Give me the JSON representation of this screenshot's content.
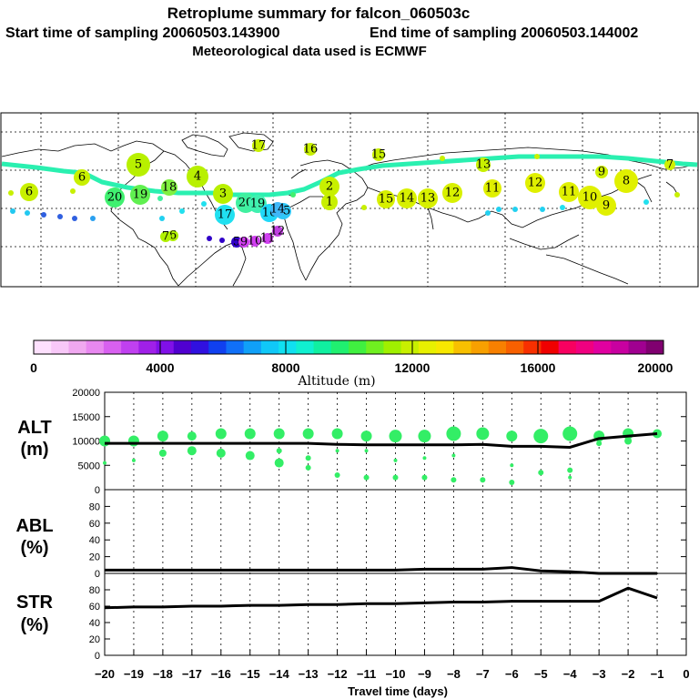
{
  "header": {
    "title": "Retroplume summary for falcon_060503c",
    "start_label": "Start time of sampling 20060503.143900",
    "end_label": "End time of sampling 20060503.144002",
    "met_label": "Meteorological data used is ECMWF"
  },
  "colors": {
    "track": "#2af0b0",
    "plume": "#33ee66",
    "black": "#000000",
    "cyan": "#22e0ee",
    "yellowgreen": "#c8f000",
    "purple": "#5a00c8",
    "magenta": "#d040f0"
  },
  "map": {
    "plume_labels": [
      {
        "t": "17",
        "c": "#c8f000"
      },
      {
        "t": "16",
        "c": "#c8f000"
      },
      {
        "t": "15",
        "c": "#c8f000"
      },
      {
        "t": "5",
        "c": "#b8f000"
      },
      {
        "t": "4",
        "c": "#b8f000"
      },
      {
        "t": "3",
        "c": "#b8f000"
      },
      {
        "t": "2",
        "c": "#c8f000"
      },
      {
        "t": "1",
        "c": "#c8f000"
      },
      {
        "t": "6",
        "c": "#c8f000"
      },
      {
        "t": "20",
        "c": "#40f070"
      },
      {
        "t": "19",
        "c": "#60f050"
      },
      {
        "t": "18",
        "c": "#80f040"
      },
      {
        "t": "20",
        "c": "#40f0a0"
      },
      {
        "t": "19",
        "c": "#40f0b0"
      },
      {
        "t": "17",
        "c": "#20e0f0"
      },
      {
        "t": "16",
        "c": "#20d8f8"
      },
      {
        "t": "15",
        "c": "#30c8f8"
      },
      {
        "t": "14",
        "c": "#40b8f8"
      },
      {
        "t": "15",
        "c": "#d8f000"
      },
      {
        "t": "14",
        "c": "#d8f000"
      },
      {
        "t": "13",
        "c": "#d8f000"
      },
      {
        "t": "12",
        "c": "#d8f000"
      },
      {
        "t": "11",
        "c": "#e0f000"
      },
      {
        "t": "12",
        "c": "#e0f000"
      },
      {
        "t": "11",
        "c": "#e0f000"
      },
      {
        "t": "10",
        "c": "#e0f000"
      },
      {
        "t": "9",
        "c": "#e0f000"
      },
      {
        "t": "8",
        "c": "#e0f000"
      },
      {
        "t": "13",
        "c": "#c8f000"
      },
      {
        "t": "9",
        "c": "#d0f000"
      },
      {
        "t": "7",
        "c": "#d0f000"
      },
      {
        "t": "6",
        "c": "#c8f000"
      },
      {
        "t": "6",
        "c": "#b0f000"
      },
      {
        "t": "7",
        "c": "#b0f000"
      },
      {
        "t": "5",
        "c": "#3000c8"
      },
      {
        "t": "9",
        "c": "#d040f0"
      },
      {
        "t": "10",
        "c": "#d040f0"
      },
      {
        "t": "11",
        "c": "#d040f0"
      },
      {
        "t": "12",
        "c": "#c040e0"
      }
    ]
  },
  "colorbar": {
    "colors": [
      "#fde0fd",
      "#f8c8f8",
      "#f0a8f0",
      "#e888f0",
      "#d860f0",
      "#c040f0",
      "#a020e8",
      "#8010e8",
      "#5000d0",
      "#3010e0",
      "#1040f0",
      "#1070f8",
      "#10a0f8",
      "#10c8f8",
      "#10e0f0",
      "#10f0d0",
      "#10f0a0",
      "#20f070",
      "#40f040",
      "#70f020",
      "#a0f000",
      "#c8f000",
      "#e8f000",
      "#f8e800",
      "#f8c000",
      "#f8a000",
      "#f88000",
      "#f86000",
      "#f83000",
      "#f00000",
      "#f80060",
      "#f00080",
      "#e000a0",
      "#c800a0",
      "#a00090",
      "#800070"
    ],
    "tick_labels": [
      "0",
      "4000",
      "8000",
      "12000",
      "16000",
      "20000"
    ],
    "xlabel": "Altitude (m)"
  },
  "chart_data": [
    {
      "type": "line",
      "panel": "ALT",
      "ylabel": "ALT",
      "ylabel_unit": "(m)",
      "x": [
        -20,
        -19,
        -18,
        -17,
        -16,
        -15,
        -14,
        -13,
        -12,
        -11,
        -10,
        -9,
        -8,
        -7,
        -6,
        -5,
        -4,
        -3,
        -2,
        -1
      ],
      "values": [
        9500,
        9500,
        9500,
        9500,
        9500,
        9500,
        9500,
        9500,
        9300,
        9200,
        9200,
        9200,
        9200,
        9300,
        8900,
        8900,
        8700,
        10500,
        11000,
        11500
      ],
      "xlim": [
        -20,
        0
      ],
      "ylim": [
        0,
        20000
      ],
      "yticks": [
        0,
        5000,
        10000,
        15000,
        20000
      ],
      "ytick_labels": [
        "0",
        "5000",
        "10000",
        "15000",
        "20000"
      ],
      "bubbles": [
        {
          "x": -20,
          "y": 10000,
          "s": 6
        },
        {
          "x": -20,
          "y": 5500,
          "s": 2
        },
        {
          "x": -19,
          "y": 10000,
          "s": 6
        },
        {
          "x": -19,
          "y": 6000,
          "s": 2
        },
        {
          "x": -18,
          "y": 11000,
          "s": 6
        },
        {
          "x": -18,
          "y": 7500,
          "s": 4
        },
        {
          "x": -17,
          "y": 11000,
          "s": 5
        },
        {
          "x": -17,
          "y": 8000,
          "s": 5
        },
        {
          "x": -16,
          "y": 11500,
          "s": 6
        },
        {
          "x": -16,
          "y": 7500,
          "s": 5
        },
        {
          "x": -15,
          "y": 11500,
          "s": 6
        },
        {
          "x": -15,
          "y": 7000,
          "s": 5
        },
        {
          "x": -14,
          "y": 11500,
          "s": 6
        },
        {
          "x": -14,
          "y": 8000,
          "s": 3
        },
        {
          "x": -14,
          "y": 5500,
          "s": 5
        },
        {
          "x": -13,
          "y": 11500,
          "s": 6
        },
        {
          "x": -13,
          "y": 6500,
          "s": 3
        },
        {
          "x": -13,
          "y": 4500,
          "s": 3
        },
        {
          "x": -12,
          "y": 11500,
          "s": 6
        },
        {
          "x": -12,
          "y": 8000,
          "s": 2
        },
        {
          "x": -12,
          "y": 3000,
          "s": 3
        },
        {
          "x": -11,
          "y": 11000,
          "s": 6
        },
        {
          "x": -11,
          "y": 8000,
          "s": 2
        },
        {
          "x": -11,
          "y": 2500,
          "s": 3
        },
        {
          "x": -10,
          "y": 11000,
          "s": 7
        },
        {
          "x": -10,
          "y": 6000,
          "s": 2
        },
        {
          "x": -10,
          "y": 2500,
          "s": 3
        },
        {
          "x": -9,
          "y": 11000,
          "s": 7
        },
        {
          "x": -9,
          "y": 6500,
          "s": 2
        },
        {
          "x": -9,
          "y": 2500,
          "s": 3
        },
        {
          "x": -8,
          "y": 11500,
          "s": 8
        },
        {
          "x": -8,
          "y": 7000,
          "s": 2
        },
        {
          "x": -8,
          "y": 2000,
          "s": 3
        },
        {
          "x": -7,
          "y": 11500,
          "s": 7
        },
        {
          "x": -7,
          "y": 2000,
          "s": 3
        },
        {
          "x": -6,
          "y": 11000,
          "s": 6
        },
        {
          "x": -6,
          "y": 5000,
          "s": 2
        },
        {
          "x": -6,
          "y": 1500,
          "s": 3
        },
        {
          "x": -5,
          "y": 11000,
          "s": 8
        },
        {
          "x": -5,
          "y": 3500,
          "s": 3
        },
        {
          "x": -4,
          "y": 11500,
          "s": 8
        },
        {
          "x": -4,
          "y": 4000,
          "s": 3
        },
        {
          "x": -4,
          "y": 2500,
          "s": 2
        },
        {
          "x": -3,
          "y": 11000,
          "s": 6
        },
        {
          "x": -3,
          "y": 9500,
          "s": 3
        },
        {
          "x": -2,
          "y": 11500,
          "s": 6
        },
        {
          "x": -2,
          "y": 10000,
          "s": 4
        },
        {
          "x": -1,
          "y": 11500,
          "s": 5
        }
      ]
    },
    {
      "type": "line",
      "panel": "ABL",
      "ylabel": "ABL",
      "ylabel_unit": "(%)",
      "x": [
        -20,
        -19,
        -18,
        -17,
        -16,
        -15,
        -14,
        -13,
        -12,
        -11,
        -10,
        -9,
        -8,
        -7,
        -6,
        -5,
        -4,
        -3,
        -2,
        -1
      ],
      "values": [
        4,
        4,
        4,
        4,
        4,
        4,
        4,
        4,
        4,
        4,
        4,
        5,
        5,
        5,
        7,
        3,
        2,
        0,
        0,
        0
      ],
      "xlim": [
        -20,
        0
      ],
      "ylim": [
        0,
        100
      ],
      "yticks": [
        0,
        20,
        40,
        60,
        80
      ],
      "ytick_labels": [
        "0",
        "20",
        "40",
        "60",
        "80"
      ]
    },
    {
      "type": "line",
      "panel": "STR",
      "ylabel": "STR",
      "ylabel_unit": "(%)",
      "x": [
        -20,
        -19,
        -18,
        -17,
        -16,
        -15,
        -14,
        -13,
        -12,
        -11,
        -10,
        -9,
        -8,
        -7,
        -6,
        -5,
        -4,
        -3,
        -2,
        -1
      ],
      "values": [
        58,
        59,
        59,
        60,
        60,
        61,
        61,
        62,
        62,
        63,
        63,
        64,
        65,
        65,
        66,
        66,
        66,
        66,
        82,
        70
      ],
      "xlim": [
        -20,
        0
      ],
      "ylim": [
        0,
        100
      ],
      "yticks": [
        0,
        20,
        40,
        60,
        80
      ],
      "ytick_labels": [
        "0",
        "20",
        "40",
        "60",
        "80"
      ],
      "xlabel": "Travel time (days)",
      "xtick_labels": [
        "−20",
        "−19",
        "−18",
        "−17",
        "−16",
        "−15",
        "−14",
        "−13",
        "−12",
        "−11",
        "−10",
        "−9",
        "−8",
        "−7",
        "−6",
        "−5",
        "−4",
        "−3",
        "−2",
        "−1",
        "0"
      ]
    }
  ]
}
